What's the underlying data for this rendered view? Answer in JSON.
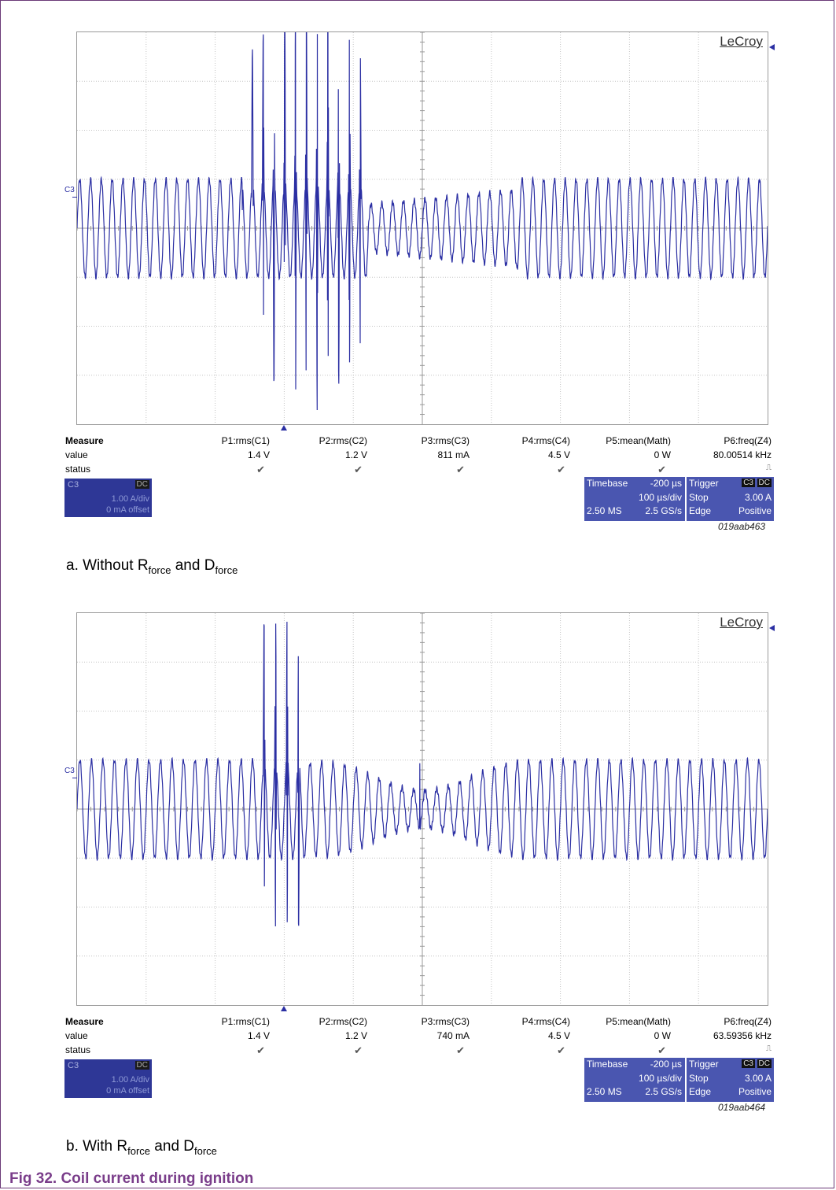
{
  "brand": "LeCroy",
  "channel_tag": "C3",
  "measure": {
    "title": "Measure",
    "row_labels": [
      "value",
      "status"
    ],
    "params": [
      "P1:rms(C1)",
      "P2:rms(C2)",
      "P3:rms(C3)",
      "P4:rms(C4)",
      "P5:mean(Math)",
      "P6:freq(Z4)"
    ],
    "status_mark": "✔",
    "status_last": "⎍"
  },
  "channel_box": {
    "name": "C3",
    "coupling": "DC",
    "scale": "1.00 A/div",
    "offset": "0 mA offset"
  },
  "timebase": {
    "label": "Timebase",
    "delay": "-200 µs",
    "per_div": "100 µs/div",
    "samples": "2.50 MS",
    "rate": "2.5 GS/s"
  },
  "trigger": {
    "label": "Trigger",
    "channel": "C3",
    "coupling": "DC",
    "mode": "Stop",
    "level": "3.00 A",
    "type": "Edge",
    "slope": "Positive"
  },
  "scopes": [
    {
      "values": [
        "1.4 V",
        "1.2 V",
        "811 mA",
        "4.5 V",
        "0 W",
        "80.00514 kHz"
      ],
      "code": "019aab463",
      "caption_prefix": "a.  Without R",
      "sub1": "force",
      "caption_mid": " and D",
      "sub2": "force"
    },
    {
      "values": [
        "1.4 V",
        "1.2 V",
        "740 mA",
        "4.5 V",
        "0 W",
        "63.59356 kHz"
      ],
      "code": "019aab464",
      "caption_prefix": "b.  With R",
      "sub1": "force",
      "caption_mid": " and D",
      "sub2": "force"
    }
  ],
  "figure_caption": "Fig 32.   Coil current during ignition"
}
